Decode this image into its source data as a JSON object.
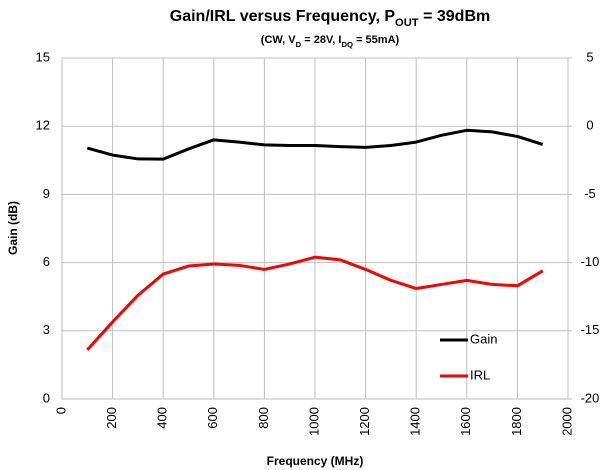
{
  "chart_data": {
    "type": "line",
    "title": [
      "Gain/IRL versus Frequency, P",
      "OUT",
      " = 39dBm"
    ],
    "subtitle": [
      "(CW, V",
      "D",
      " = 28V, I",
      "DQ",
      " = 55mA)"
    ],
    "x_label": "Frequency (MHz)",
    "y_label": "Gain (dB)",
    "x": [
      100,
      200,
      300,
      400,
      500,
      600,
      700,
      800,
      900,
      1000,
      1100,
      1200,
      1300,
      1400,
      1500,
      1600,
      1700,
      1800,
      1900
    ],
    "series": [
      {
        "name": "Gain",
        "color": "#000000",
        "values": [
          11.04,
          10.73,
          10.56,
          10.55,
          11.0,
          11.4,
          11.3,
          11.18,
          11.15,
          11.15,
          11.1,
          11.07,
          11.15,
          11.3,
          11.6,
          11.82,
          11.75,
          11.55,
          11.2
        ]
      },
      {
        "name": "IRL",
        "color": "#ff0000",
        "axis": "y2",
        "values": [
          -16.4,
          -14.35,
          -12.4,
          -10.84,
          -10.25,
          -10.1,
          -10.2,
          -10.5,
          -10.1,
          -9.6,
          -9.8,
          -10.5,
          -11.3,
          -11.9,
          -11.6,
          -11.3,
          -11.6,
          -11.7,
          -10.6
        ]
      }
    ],
    "xlim": [
      0,
      2000
    ],
    "xticks": [
      0,
      200,
      400,
      600,
      800,
      1000,
      1200,
      1400,
      1600,
      1800,
      2000
    ],
    "ylim": [
      0,
      15
    ],
    "yticks": [
      0,
      3,
      6,
      9,
      12,
      15
    ],
    "y2lim": [
      -20,
      5
    ],
    "y2ticks": [
      -20,
      -15,
      -10,
      -5,
      0,
      5
    ],
    "grid": true,
    "legend": "lower right"
  }
}
